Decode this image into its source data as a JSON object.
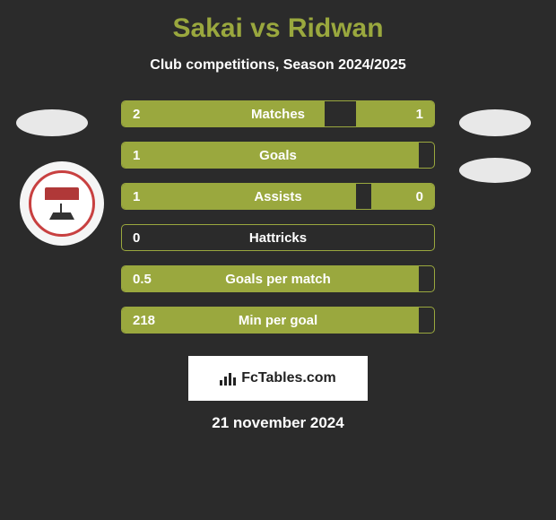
{
  "title": "Sakai vs Ridwan",
  "subtitle": "Club competitions, Season 2024/2025",
  "colors": {
    "background": "#2b2b2b",
    "accent": "#9aa83e",
    "text_white": "#ffffff",
    "avatar_bg": "#e8e8e8",
    "badge_red": "#c84040",
    "footer_bg": "#ffffff"
  },
  "stats": [
    {
      "label": "Matches",
      "left_value": "2",
      "right_value": "1",
      "left_fill_pct": 65,
      "right_fill_pct": 25
    },
    {
      "label": "Goals",
      "left_value": "1",
      "right_value": "",
      "left_fill_pct": 95,
      "right_fill_pct": 0
    },
    {
      "label": "Assists",
      "left_value": "1",
      "right_value": "0",
      "left_fill_pct": 75,
      "right_fill_pct": 20
    },
    {
      "label": "Hattricks",
      "left_value": "0",
      "right_value": "",
      "left_fill_pct": 0,
      "right_fill_pct": 0
    },
    {
      "label": "Goals per match",
      "left_value": "0.5",
      "right_value": "",
      "left_fill_pct": 95,
      "right_fill_pct": 0
    },
    {
      "label": "Min per goal",
      "left_value": "218",
      "right_value": "",
      "left_fill_pct": 95,
      "right_fill_pct": 0
    }
  ],
  "footer": {
    "brand": "FcTables.com"
  },
  "date": "21 november 2024"
}
